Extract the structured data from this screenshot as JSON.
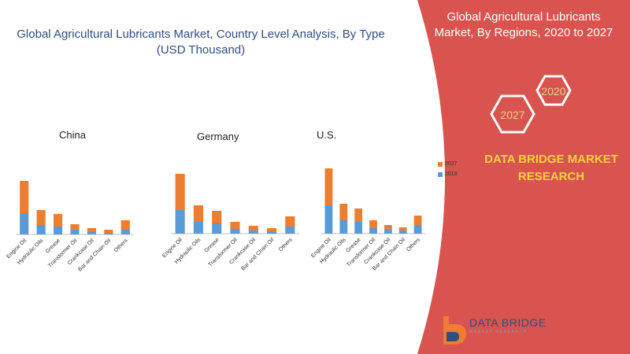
{
  "main_title": "Global Agricultural Lubricants Market, Country Level Analysis, By Type (USD Thousand)",
  "side_panel": {
    "title": "Global Agricultural Lubricants Market, By Regions, 2020 to 2027",
    "hex_2020": "2020",
    "hex_2027": "2027",
    "brand": "DATA BRIDGE MARKET RESEARCH",
    "panel_color": "#d9534f"
  },
  "logo": {
    "name": "DATA BRIDGE",
    "tagline": "MARKET RESEARCH"
  },
  "legend": [
    {
      "label": "2027",
      "color": "#ed7d31"
    },
    {
      "label": "2019",
      "color": "#5b9bd5"
    }
  ],
  "chart_data": [
    {
      "type": "bar",
      "stacked": true,
      "title": "China",
      "categories": [
        "Engine Oil",
        "Hydraulic Oils",
        "Grease",
        "Transformer Oil",
        "Crankcase Oil",
        "Bar and Chain Oil",
        "Others"
      ],
      "series": [
        {
          "name": "2019",
          "values": [
            27,
            12,
            10,
            6,
            3,
            2,
            6
          ]
        },
        {
          "name": "2027",
          "values": [
            41,
            19,
            16,
            7,
            5,
            4,
            12
          ]
        }
      ],
      "ylim": [
        0,
        75
      ]
    },
    {
      "type": "bar",
      "stacked": true,
      "title": "Germany",
      "categories": [
        "Engine Oil",
        "Hydraulic Oils",
        "Grease",
        "Transformer Oil",
        "Crankcase Oil",
        "Bar and Chain Oil",
        "Others"
      ],
      "series": [
        {
          "name": "2019",
          "values": [
            30,
            15,
            13,
            6,
            4,
            3,
            9
          ]
        },
        {
          "name": "2027",
          "values": [
            46,
            21,
            16,
            9,
            6,
            4,
            13
          ]
        }
      ],
      "ylim": [
        0,
        80
      ]
    },
    {
      "type": "bar",
      "stacked": true,
      "title": "U.S.",
      "categories": [
        "Engine Oil",
        "Hydraulic Oils",
        "Grease",
        "Transformer Oil",
        "Crankcase Oil",
        "Bar and Chain Oil",
        "Others"
      ],
      "series": [
        {
          "name": "2019",
          "values": [
            36,
            17,
            15,
            7,
            5,
            4,
            11
          ]
        },
        {
          "name": "2027",
          "values": [
            47,
            21,
            17,
            10,
            6,
            4,
            12
          ]
        }
      ],
      "ylim": [
        0,
        85
      ]
    }
  ]
}
